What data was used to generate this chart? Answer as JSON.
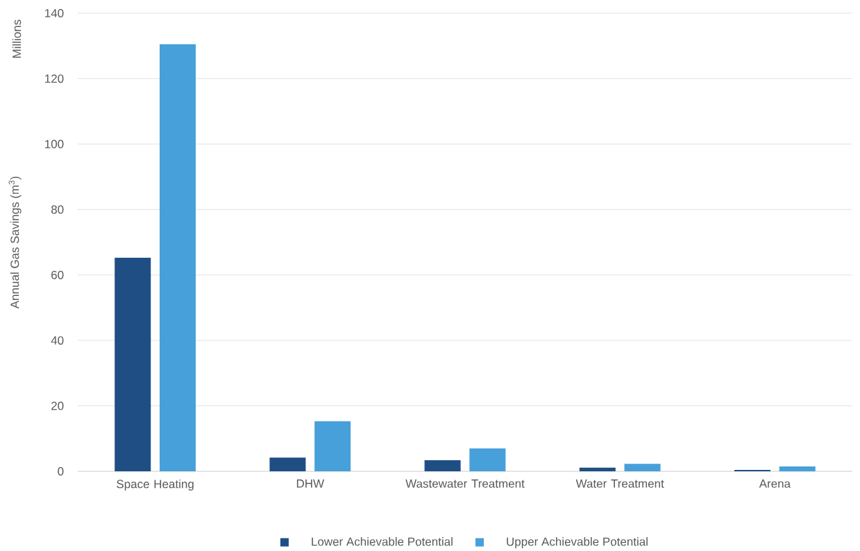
{
  "chart_data": {
    "type": "bar",
    "categories": [
      "Space Heating",
      "DHW",
      "Wastewater Treatment",
      "Water Treatment",
      "Arena"
    ],
    "series": [
      {
        "name": "Lower Achievable Potential",
        "color": "#1f4e85",
        "values": [
          65.3,
          4.2,
          3.4,
          1.1,
          0.4
        ]
      },
      {
        "name": "Upper Achievable Potential",
        "color": "#47a0da",
        "values": [
          130.5,
          15.3,
          7.0,
          2.3,
          1.5
        ]
      }
    ],
    "ylabel": "Annual Gas Savings (m$^{3}$)",
    "annotations": [
      "Millions"
    ],
    "ylim": [
      0,
      140
    ],
    "yticks": [
      0,
      20,
      40,
      60,
      80,
      100,
      120,
      140
    ],
    "grid": "y",
    "legend": "bottom"
  }
}
